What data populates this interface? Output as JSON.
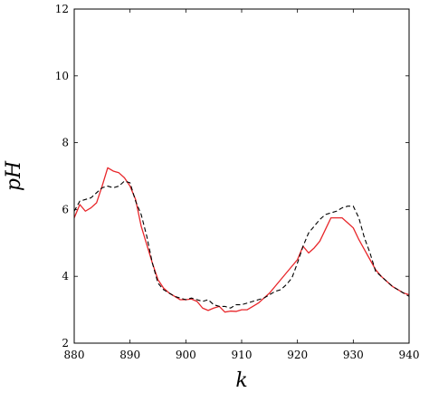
{
  "chart_data": {
    "type": "line",
    "title": "",
    "xlabel": "k",
    "ylabel": "pH",
    "xlim": [
      880,
      940
    ],
    "ylim": [
      2,
      12
    ],
    "xticks": [
      880,
      890,
      900,
      910,
      920,
      930,
      940
    ],
    "yticks": [
      2,
      4,
      6,
      8,
      10,
      12
    ],
    "xtick_labels": [
      "880",
      "890",
      "900",
      "910",
      "920",
      "930",
      "940"
    ],
    "ytick_labels": [
      "2",
      "4",
      "6",
      "8",
      "10",
      "12"
    ],
    "grid": false,
    "legend": "none",
    "series": [
      {
        "style": "solid",
        "color": "#e8262a",
        "x": [
          880,
          881,
          882,
          883,
          884,
          885,
          886,
          887,
          888,
          889,
          890,
          891,
          892,
          893,
          894,
          895,
          896,
          897,
          898,
          899,
          900,
          901,
          902,
          903,
          904,
          905,
          906,
          907,
          908,
          909,
          910,
          911,
          912,
          913,
          914,
          915,
          916,
          917,
          918,
          919,
          920,
          921,
          922,
          923,
          924,
          925,
          926,
          927,
          928,
          929,
          930,
          931,
          932,
          933,
          934,
          935,
          936,
          937,
          938,
          939,
          940
        ],
        "y": [
          5.75,
          6.15,
          5.95,
          6.05,
          6.2,
          6.7,
          7.25,
          7.15,
          7.1,
          6.95,
          6.7,
          6.3,
          5.5,
          4.95,
          4.4,
          3.9,
          3.65,
          3.5,
          3.4,
          3.3,
          3.3,
          3.32,
          3.25,
          3.05,
          2.98,
          3.05,
          3.1,
          2.93,
          2.96,
          2.95,
          3.0,
          3.0,
          3.1,
          3.2,
          3.35,
          3.5,
          3.7,
          3.9,
          4.1,
          4.3,
          4.5,
          4.9,
          4.7,
          4.85,
          5.05,
          5.4,
          5.75,
          5.75,
          5.75,
          5.6,
          5.45,
          5.1,
          4.8,
          4.5,
          4.2,
          4.0,
          3.85,
          3.7,
          3.6,
          3.5,
          3.45
        ]
      },
      {
        "style": "dashed",
        "color": "#000000",
        "x": [
          880,
          881,
          882,
          883,
          884,
          885,
          886,
          887,
          888,
          889,
          890,
          891,
          892,
          893,
          894,
          895,
          896,
          897,
          898,
          899,
          900,
          901,
          902,
          903,
          904,
          905,
          906,
          907,
          908,
          909,
          910,
          911,
          912,
          913,
          914,
          915,
          916,
          917,
          918,
          919,
          920,
          921,
          922,
          923,
          924,
          925,
          926,
          927,
          928,
          929,
          930,
          931,
          932,
          933,
          934,
          935,
          936,
          937,
          938,
          939,
          940
        ],
        "y": [
          5.95,
          6.25,
          6.3,
          6.35,
          6.5,
          6.65,
          6.7,
          6.65,
          6.7,
          6.85,
          6.8,
          6.25,
          5.85,
          5.2,
          4.4,
          3.8,
          3.6,
          3.5,
          3.4,
          3.35,
          3.3,
          3.35,
          3.3,
          3.25,
          3.3,
          3.15,
          3.1,
          3.1,
          3.05,
          3.15,
          3.15,
          3.2,
          3.25,
          3.3,
          3.35,
          3.45,
          3.55,
          3.6,
          3.75,
          3.95,
          4.4,
          4.9,
          5.3,
          5.5,
          5.7,
          5.85,
          5.9,
          5.95,
          6.05,
          6.1,
          6.1,
          5.75,
          5.15,
          4.7,
          4.15,
          4.0,
          3.85,
          3.7,
          3.6,
          3.5,
          3.4
        ]
      }
    ]
  }
}
